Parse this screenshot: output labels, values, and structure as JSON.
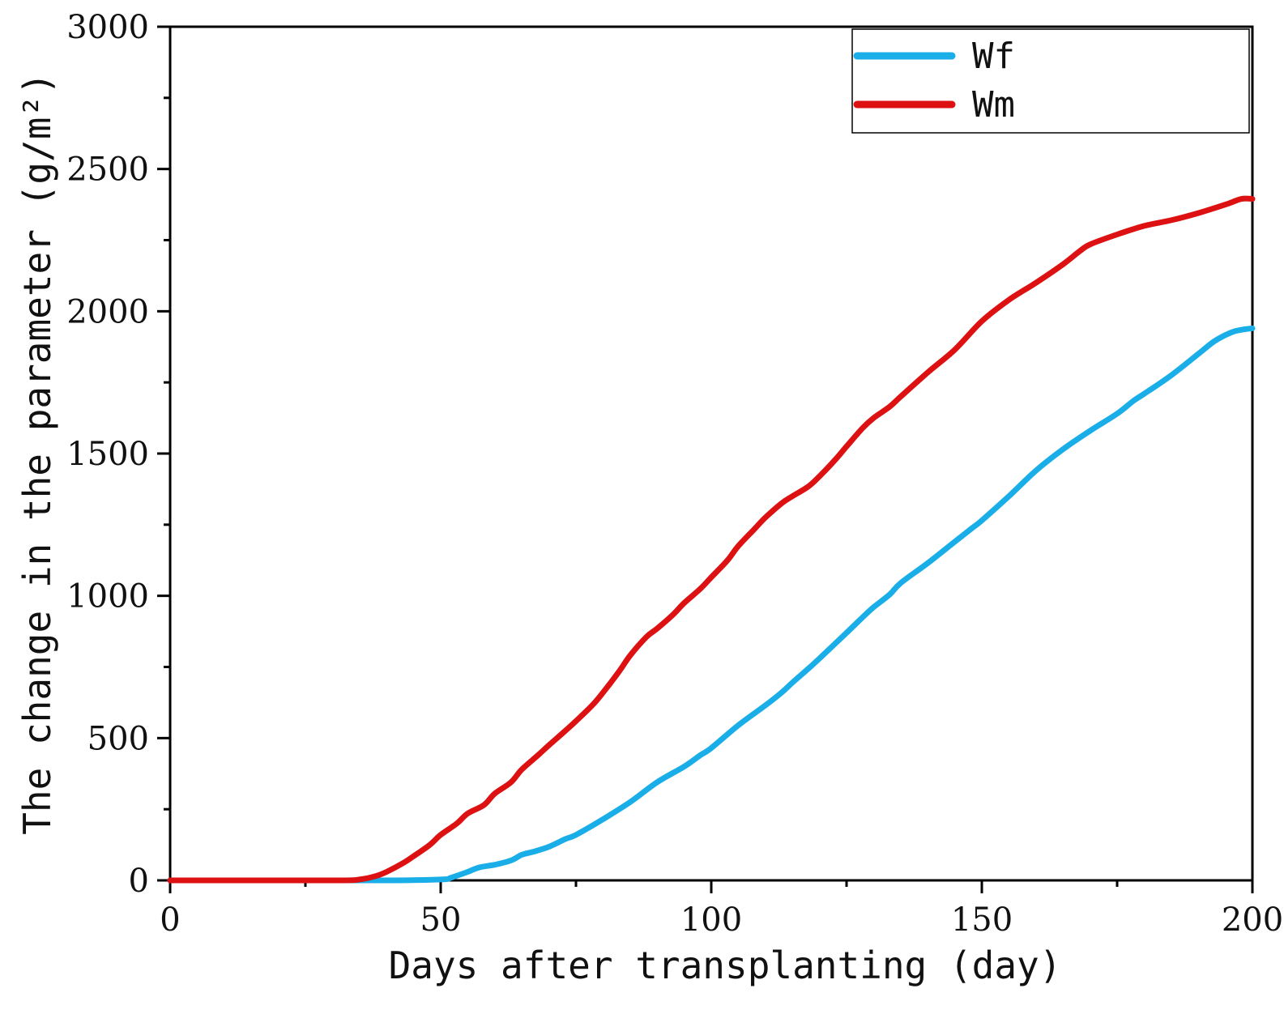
{
  "chart_data": {
    "type": "line",
    "xlabel": "Days after transplanting (day)",
    "ylabel": "The change in the parameter (g/m²)",
    "xlim": [
      0,
      200
    ],
    "ylim": [
      0,
      3000
    ],
    "x_ticks": [
      "0",
      "50",
      "100",
      "150",
      "200"
    ],
    "y_ticks": [
      "0",
      "500",
      "1000",
      "1500",
      "2000",
      "2500",
      "3000"
    ],
    "x_tick_values": [
      0,
      50,
      100,
      150,
      200
    ],
    "y_tick_values": [
      0,
      500,
      1000,
      1500,
      2000,
      2500,
      3000
    ],
    "x_minor_step": 25,
    "y_minor_step": 250,
    "grid": false,
    "legend_position": "top-right",
    "series": [
      {
        "name": "Wf",
        "color": "#1aaee8",
        "x": [
          0,
          20,
          40,
          50,
          52,
          55,
          57,
          60,
          63,
          65,
          67,
          70,
          73,
          75,
          80,
          85,
          90,
          95,
          98,
          100,
          105,
          110,
          113,
          115,
          118,
          120,
          125,
          128,
          130,
          133,
          135,
          140,
          145,
          148,
          150,
          155,
          160,
          165,
          170,
          175,
          178,
          180,
          185,
          190,
          193,
          196,
          198,
          200
        ],
        "values": [
          0,
          0,
          0,
          3,
          10,
          30,
          45,
          55,
          70,
          90,
          100,
          118,
          145,
          160,
          215,
          275,
          345,
          400,
          440,
          465,
          545,
          615,
          660,
          695,
          745,
          780,
          870,
          925,
          960,
          1005,
          1045,
          1115,
          1190,
          1235,
          1265,
          1350,
          1440,
          1515,
          1580,
          1640,
          1685,
          1710,
          1775,
          1850,
          1895,
          1925,
          1935,
          1940
        ]
      },
      {
        "name": "Wm",
        "color": "#dd1111",
        "x": [
          0,
          20,
          32,
          35,
          38,
          40,
          43,
          45,
          48,
          50,
          53,
          55,
          58,
          60,
          63,
          65,
          68,
          70,
          73,
          75,
          78,
          80,
          83,
          85,
          88,
          90,
          93,
          95,
          98,
          100,
          103,
          105,
          108,
          110,
          113,
          115,
          118,
          120,
          123,
          125,
          128,
          130,
          133,
          135,
          140,
          145,
          150,
          155,
          160,
          165,
          168,
          170,
          175,
          180,
          185,
          190,
          195,
          198,
          200
        ],
        "values": [
          0,
          0,
          0,
          3,
          15,
          30,
          60,
          85,
          125,
          160,
          200,
          235,
          265,
          305,
          345,
          390,
          440,
          475,
          525,
          560,
          615,
          660,
          735,
          790,
          855,
          885,
          935,
          975,
          1025,
          1065,
          1125,
          1175,
          1235,
          1275,
          1325,
          1350,
          1385,
          1420,
          1480,
          1525,
          1590,
          1625,
          1665,
          1700,
          1785,
          1865,
          1965,
          2040,
          2100,
          2165,
          2210,
          2235,
          2270,
          2300,
          2320,
          2345,
          2375,
          2395,
          2395
        ]
      }
    ]
  }
}
